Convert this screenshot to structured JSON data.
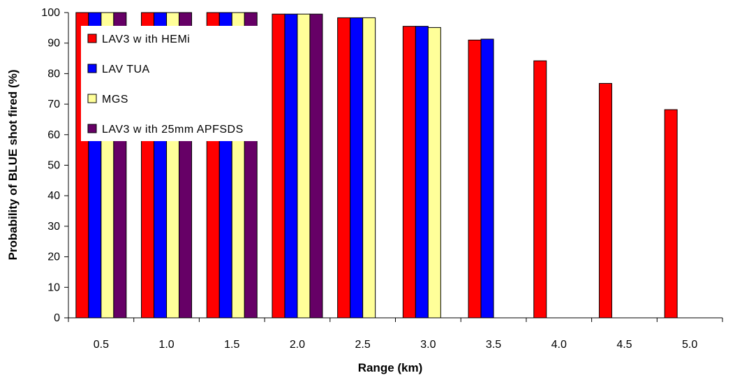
{
  "chart_data": {
    "type": "bar",
    "title": "",
    "xlabel": "Range (km)",
    "ylabel": "Probability of BLUE shot fired (%)",
    "ylim": [
      0,
      100
    ],
    "yticks": [
      0,
      10,
      20,
      30,
      40,
      50,
      60,
      70,
      80,
      90,
      100
    ],
    "categories": [
      "0.5",
      "1.0",
      "1.5",
      "2.0",
      "2.5",
      "3.0",
      "3.5",
      "4.0",
      "4.5",
      "5.0"
    ],
    "legend_position": "top-left",
    "grid": false,
    "series": [
      {
        "name": "LAV3 w ith HEMi",
        "color": "#ff0000",
        "values": [
          100,
          100,
          100,
          99.5,
          98.3,
          95.5,
          91,
          84.2,
          76.8,
          68.2
        ]
      },
      {
        "name": "LAV TUA",
        "color": "#0000ff",
        "values": [
          100,
          100,
          100,
          99.5,
          98.3,
          95.5,
          91.3,
          null,
          null,
          null
        ]
      },
      {
        "name": "MGS",
        "color": "#ffff99",
        "values": [
          100,
          100,
          100,
          99.5,
          98.3,
          95.1,
          null,
          null,
          null,
          null
        ]
      },
      {
        "name": "LAV3 w ith 25mm APFSDS",
        "color": "#660066",
        "values": [
          100,
          100,
          100,
          99.5,
          null,
          null,
          null,
          null,
          null,
          null
        ]
      }
    ]
  }
}
